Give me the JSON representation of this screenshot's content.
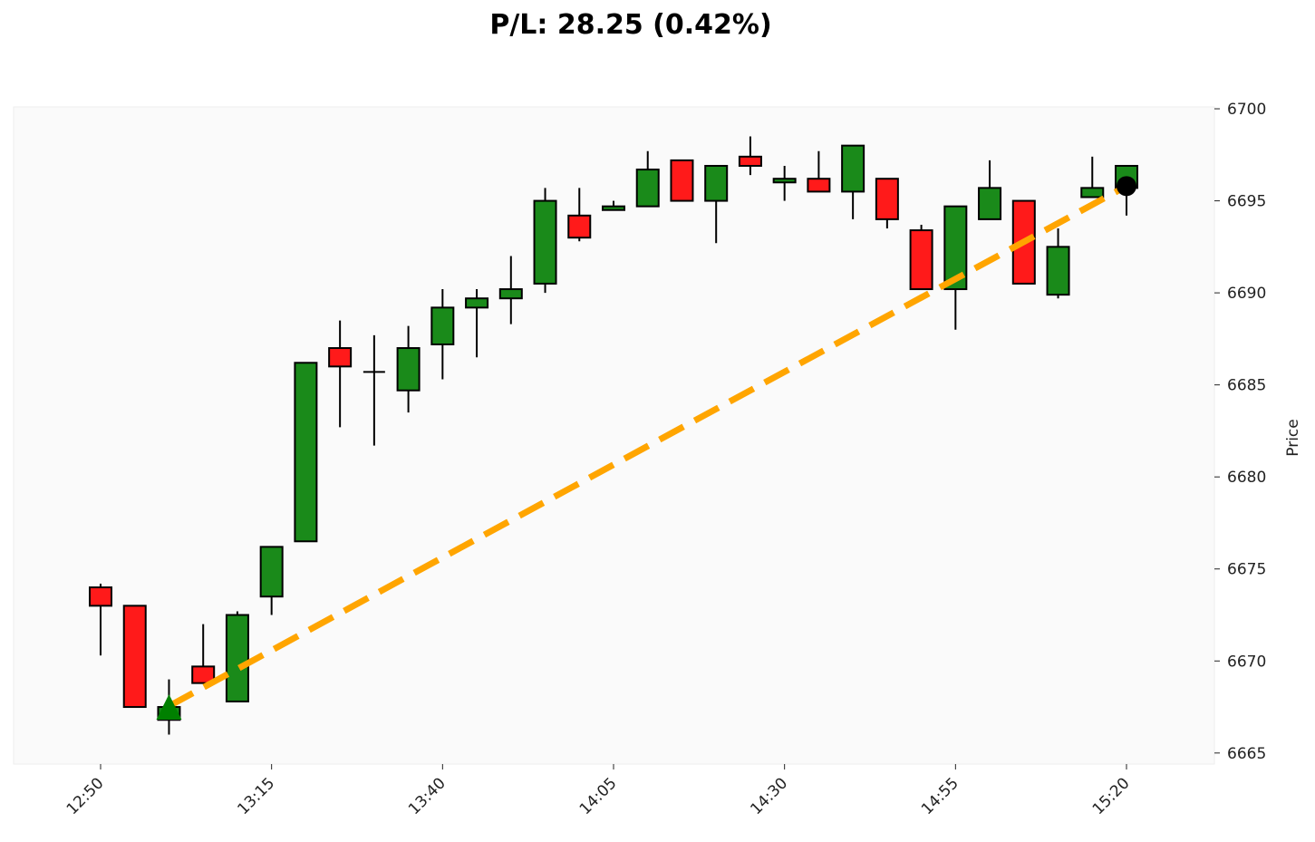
{
  "chart_data": {
    "type": "candlestick",
    "title": "P/L: 28.25 (0.42%)",
    "xlabel": "",
    "ylabel": "Price",
    "ylim": [
      6664.4,
      6700.1
    ],
    "yticks": [
      6665,
      6670,
      6675,
      6680,
      6685,
      6690,
      6695,
      6700
    ],
    "xticks": [
      "12:50",
      "13:15",
      "13:40",
      "14:05",
      "14:30",
      "14:55",
      "15:20"
    ],
    "grid": false,
    "colors": {
      "up": "#1a8a1a",
      "down": "#ff1a1a",
      "trade_line": "#ffa500",
      "entry_marker": "#008000",
      "exit_marker": "#000000",
      "background": "#fafafa"
    },
    "candles": [
      {
        "t": "12:50",
        "o": 6674.0,
        "h": 6674.2,
        "l": 6670.3,
        "c": 6673.0
      },
      {
        "t": "12:55",
        "o": 6673.0,
        "h": 6673.0,
        "l": 6667.5,
        "c": 6667.5
      },
      {
        "t": "13:00",
        "o": 6666.8,
        "h": 6669.0,
        "l": 6666.0,
        "c": 6667.5
      },
      {
        "t": "13:05",
        "o": 6669.7,
        "h": 6672.0,
        "l": 6668.8,
        "c": 6668.8
      },
      {
        "t": "13:10",
        "o": 6667.8,
        "h": 6672.7,
        "l": 6667.8,
        "c": 6672.5
      },
      {
        "t": "13:15",
        "o": 6673.5,
        "h": 6676.2,
        "l": 6672.5,
        "c": 6676.2
      },
      {
        "t": "13:20",
        "o": 6676.5,
        "h": 6686.2,
        "l": 6676.5,
        "c": 6686.2
      },
      {
        "t": "13:25",
        "o": 6687.0,
        "h": 6688.5,
        "l": 6682.7,
        "c": 6686.0
      },
      {
        "t": "13:30",
        "o": 6685.7,
        "h": 6687.7,
        "l": 6681.7,
        "c": 6685.7
      },
      {
        "t": "13:35",
        "o": 6684.7,
        "h": 6688.2,
        "l": 6683.5,
        "c": 6687.0
      },
      {
        "t": "13:40",
        "o": 6687.2,
        "h": 6690.2,
        "l": 6685.3,
        "c": 6689.2
      },
      {
        "t": "13:45",
        "o": 6689.2,
        "h": 6690.2,
        "l": 6686.5,
        "c": 6689.7
      },
      {
        "t": "13:50",
        "o": 6689.7,
        "h": 6692.0,
        "l": 6688.3,
        "c": 6690.2
      },
      {
        "t": "13:55",
        "o": 6690.5,
        "h": 6695.7,
        "l": 6690.0,
        "c": 6695.0
      },
      {
        "t": "14:00",
        "o": 6694.2,
        "h": 6695.7,
        "l": 6692.8,
        "c": 6693.0
      },
      {
        "t": "14:05",
        "o": 6694.5,
        "h": 6695.0,
        "l": 6694.5,
        "c": 6694.7
      },
      {
        "t": "14:10",
        "o": 6694.7,
        "h": 6697.7,
        "l": 6694.7,
        "c": 6696.7
      },
      {
        "t": "14:15",
        "o": 6697.2,
        "h": 6697.2,
        "l": 6695.0,
        "c": 6695.0
      },
      {
        "t": "14:20",
        "o": 6695.0,
        "h": 6696.9,
        "l": 6692.7,
        "c": 6696.9
      },
      {
        "t": "14:25",
        "o": 6697.4,
        "h": 6698.5,
        "l": 6696.4,
        "c": 6696.9
      },
      {
        "t": "14:30",
        "o": 6696.0,
        "h": 6696.9,
        "l": 6695.0,
        "c": 6696.2
      },
      {
        "t": "14:35",
        "o": 6696.2,
        "h": 6697.7,
        "l": 6695.5,
        "c": 6695.5
      },
      {
        "t": "14:40",
        "o": 6695.5,
        "h": 6698.0,
        "l": 6694.0,
        "c": 6698.0
      },
      {
        "t": "14:45",
        "o": 6696.2,
        "h": 6696.2,
        "l": 6693.5,
        "c": 6694.0
      },
      {
        "t": "14:50",
        "o": 6693.4,
        "h": 6693.7,
        "l": 6690.2,
        "c": 6690.2
      },
      {
        "t": "14:55",
        "o": 6690.2,
        "h": 6694.7,
        "l": 6688.0,
        "c": 6694.7
      },
      {
        "t": "15:00",
        "o": 6694.0,
        "h": 6697.2,
        "l": 6694.0,
        "c": 6695.7
      },
      {
        "t": "15:05",
        "o": 6695.0,
        "h": 6695.0,
        "l": 6690.5,
        "c": 6690.5
      },
      {
        "t": "15:10",
        "o": 6689.9,
        "h": 6693.5,
        "l": 6689.7,
        "c": 6692.5
      },
      {
        "t": "15:15",
        "o": 6695.2,
        "h": 6697.4,
        "l": 6695.2,
        "c": 6695.7
      },
      {
        "t": "15:20",
        "o": 6695.7,
        "h": 6696.9,
        "l": 6694.2,
        "c": 6696.9
      }
    ],
    "trade": {
      "entry": {
        "t": "13:00",
        "price": 6667.55
      },
      "exit": {
        "t": "15:20",
        "price": 6695.8
      }
    }
  }
}
